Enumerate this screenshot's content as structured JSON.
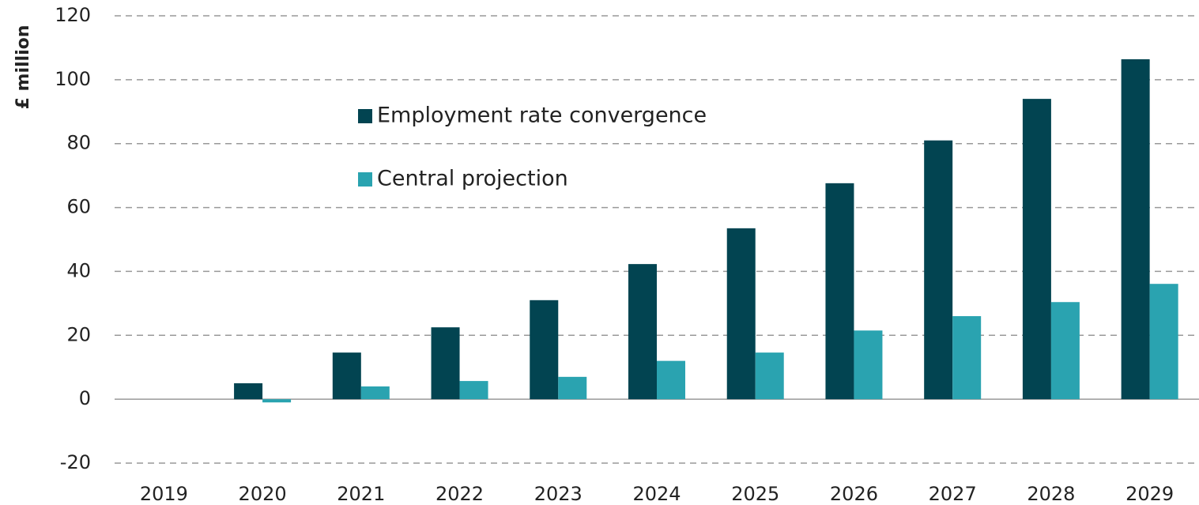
{
  "chart_data": {
    "type": "bar",
    "y_label": "£ million",
    "categories": [
      "2019",
      "2020",
      "2021",
      "2022",
      "2023",
      "2024",
      "2025",
      "2026",
      "2027",
      "2028",
      "2029"
    ],
    "series": [
      {
        "name": "Employment rate convergence",
        "color": "#024451",
        "values": [
          0,
          5,
          14.6,
          22.5,
          31,
          42.3,
          53.5,
          67.6,
          81,
          94,
          106.4
        ]
      },
      {
        "name": "Central projection",
        "color": "#2aa3b0",
        "values": [
          0,
          -1,
          4,
          5.7,
          7,
          12,
          14.6,
          21.5,
          26,
          30.4,
          36.1
        ]
      }
    ],
    "ylim": [
      -20,
      120
    ],
    "yticks": [
      -20,
      0,
      20,
      40,
      60,
      80,
      100,
      120
    ],
    "grid": true
  }
}
